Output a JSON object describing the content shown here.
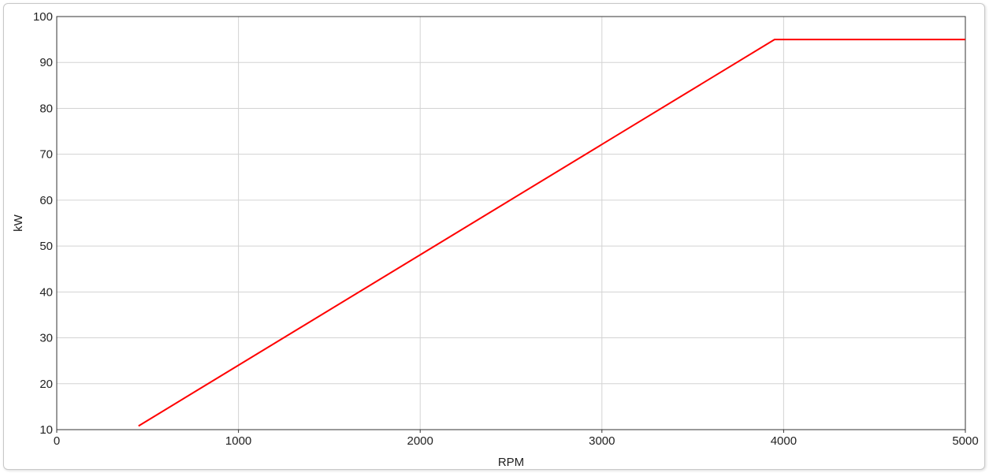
{
  "chart_data": {
    "type": "line",
    "title": "",
    "xlabel": "RPM",
    "ylabel": "kW",
    "xlim": [
      0,
      5000
    ],
    "ylim": [
      10,
      100
    ],
    "xticks": [
      0,
      1000,
      2000,
      3000,
      4000,
      5000
    ],
    "yticks": [
      10,
      20,
      30,
      40,
      50,
      60,
      70,
      80,
      90,
      100
    ],
    "grid": true,
    "series": [
      {
        "color": "#ff0000",
        "x": [
          450,
          3950,
          5000
        ],
        "y": [
          10.8,
          95,
          95
        ]
      }
    ]
  }
}
